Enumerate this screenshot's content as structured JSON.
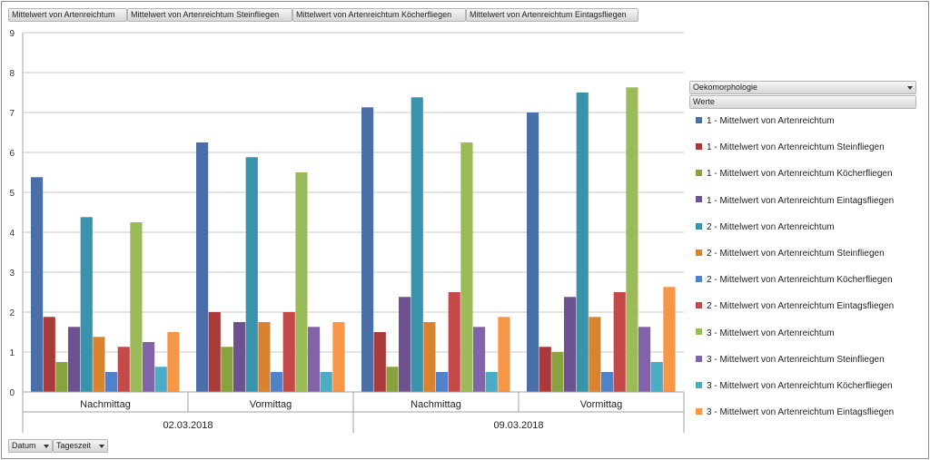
{
  "filters": {
    "value_fields": [
      "Mittelwert von Artenreichtum",
      "Mittelwert von Artenreichtum Steinfliegen",
      "Mittelwert von Artenreichtum Köcherfliegen",
      "Mittelwert von Artenreichtum Eintagsfliegen"
    ],
    "legend_field": "Oekomorphologie",
    "values_field": "Werte",
    "axis_fields": [
      "Datum",
      "Tageszeit"
    ]
  },
  "chart_data": {
    "type": "bar",
    "categories": [
      "Nachmittag",
      "Vormittag",
      "Nachmittag",
      "Vormittag"
    ],
    "groups": [
      {
        "label": "02.03.2018",
        "categories": [
          "Nachmittag",
          "Vormittag"
        ]
      },
      {
        "label": "09.03.2018",
        "categories": [
          "Nachmittag",
          "Vormittag"
        ]
      }
    ],
    "ylim": [
      0,
      9
    ],
    "yticks": [
      "0",
      "1",
      "2",
      "3",
      "4",
      "5",
      "6",
      "7",
      "8",
      "9"
    ],
    "grid": true,
    "legend_position": "right",
    "series": [
      {
        "name": "1 - Mittelwert von Artenreichtum",
        "color": "#4a6fa8",
        "values": [
          5.38,
          6.25,
          7.13,
          7.0
        ]
      },
      {
        "name": "1 - Mittelwert von Artenreichtum Steinfliegen",
        "color": "#a83a3a",
        "values": [
          1.88,
          2.0,
          1.5,
          1.13
        ]
      },
      {
        "name": "1 - Mittelwert von Artenreichtum Köcherfliegen",
        "color": "#87a23e",
        "values": [
          0.75,
          1.13,
          0.63,
          1.0
        ]
      },
      {
        "name": "1 - Mittelwert von Artenreichtum Eintagsfliegen",
        "color": "#6d5191",
        "values": [
          1.63,
          1.75,
          2.38,
          2.38
        ]
      },
      {
        "name": "2 - Mittelwert von Artenreichtum",
        "color": "#3a93ad",
        "values": [
          4.38,
          5.88,
          7.38,
          7.5
        ]
      },
      {
        "name": "2 - Mittelwert von Artenreichtum Steinfliegen",
        "color": "#d88332",
        "values": [
          1.38,
          1.75,
          1.75,
          1.88
        ]
      },
      {
        "name": "2 - Mittelwert von Artenreichtum Köcherfliegen",
        "color": "#4f82c8",
        "values": [
          0.5,
          0.5,
          0.5,
          0.5
        ]
      },
      {
        "name": "2 - Mittelwert von Artenreichtum Eintagsfliegen",
        "color": "#c44a4a",
        "values": [
          1.13,
          2.0,
          2.5,
          2.5
        ]
      },
      {
        "name": "3 - Mittelwert von Artenreichtum",
        "color": "#9bbb59",
        "values": [
          4.25,
          5.5,
          6.25,
          7.63
        ]
      },
      {
        "name": "3 - Mittelwert von Artenreichtum Steinfliegen",
        "color": "#8063a8",
        "values": [
          1.25,
          1.63,
          1.63,
          1.63
        ]
      },
      {
        "name": "3 - Mittelwert von Artenreichtum Köcherfliegen",
        "color": "#4bacc6",
        "values": [
          0.63,
          0.5,
          0.5,
          0.75
        ]
      },
      {
        "name": "3 - Mittelwert von Artenreichtum Eintagsfliegen",
        "color": "#f79646",
        "values": [
          1.5,
          1.75,
          1.88,
          2.63
        ]
      }
    ]
  }
}
